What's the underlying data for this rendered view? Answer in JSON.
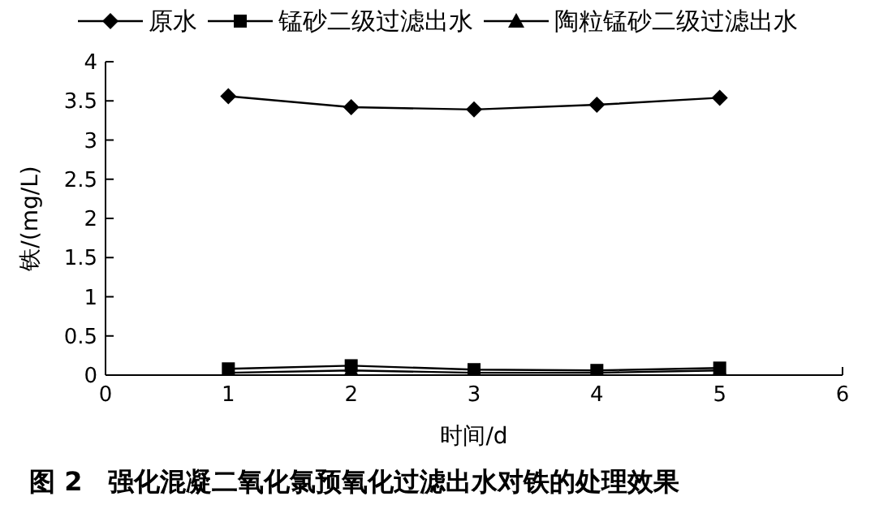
{
  "chart_data": {
    "type": "line",
    "xlabel": "时间/d",
    "ylabel": "铁/(mg/L)",
    "annotations": [
      "图 2　强化混凝二氧化氯预氧化过滤出水对铁的处理效果"
    ],
    "x": [
      1,
      2,
      3,
      4,
      5
    ],
    "xlim": [
      0,
      6
    ],
    "xticks": [
      0,
      1,
      2,
      3,
      4,
      5,
      6
    ],
    "ylim": [
      0,
      4
    ],
    "yticks": [
      0,
      0.5,
      1,
      1.5,
      2,
      2.5,
      3,
      3.5,
      4
    ],
    "grid": false,
    "legend": "top",
    "series": [
      {
        "name": "原水",
        "color": "#000000",
        "marker": "diamond",
        "values": [
          3.56,
          3.42,
          3.39,
          3.45,
          3.54
        ]
      },
      {
        "name": "锰砂二级过滤出水",
        "color": "#000000",
        "marker": "square",
        "values": [
          0.08,
          0.12,
          0.07,
          0.06,
          0.09
        ]
      },
      {
        "name": "陶粒锰砂二级过滤出水",
        "color": "#000000",
        "marker": "triangle",
        "values": [
          0.03,
          0.06,
          0.03,
          0.03,
          0.06
        ]
      }
    ]
  }
}
